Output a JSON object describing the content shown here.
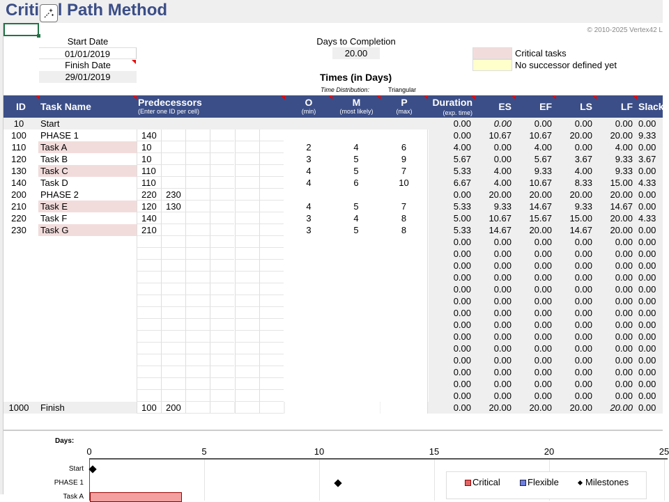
{
  "title": "Critical Path Method",
  "copyright": "© 2010-2025 Vertex42 L",
  "start_date_label": "Start Date",
  "start_date": "01/01/2019",
  "finish_date_label": "Finish Date",
  "finish_date": "29/01/2019",
  "days_to_completion_label": "Days to Completion",
  "days_to_completion": "20.00",
  "legend_top": {
    "critical": "Critical tasks",
    "no_successor": "No successor defined yet",
    "critical_color": "#f2dcdb",
    "no_successor_color": "#ffffcc"
  },
  "times_heading": "Times (in Days)",
  "time_distribution_label": "Time Distribution:",
  "time_distribution": "Triangular",
  "header": {
    "id": "ID",
    "task": "Task Name",
    "pred": "Predecessors",
    "pred_sub": "(Enter one ID per cell)",
    "o": "O",
    "o_sub": "(min)",
    "m": "M",
    "m_sub": "(most likely)",
    "p": "P",
    "p_sub": "(max)",
    "dur": "Duration",
    "dur_sub": "(exp. time)",
    "es": "ES",
    "ef": "EF",
    "ls": "LS",
    "lf": "LF",
    "slack": "Slack",
    "color": "#3b4e87"
  },
  "rows": [
    {
      "id": "10",
      "name": "Start",
      "p1": "",
      "p2": "",
      "o": "",
      "m": "",
      "p": "",
      "dur": "0.00",
      "es": "0.00",
      "ef": "0.00",
      "ls": "0.00",
      "lf": "0.00",
      "slack": "0.00",
      "critical": false,
      "band": true
    },
    {
      "id": "100",
      "name": "PHASE 1",
      "p1": "140",
      "p2": "",
      "o": "",
      "m": "",
      "p": "",
      "dur": "0.00",
      "es": "10.67",
      "ef": "10.67",
      "ls": "20.00",
      "lf": "20.00",
      "slack": "9.33",
      "critical": false
    },
    {
      "id": "110",
      "name": "Task A",
      "p1": "10",
      "p2": "",
      "o": "2",
      "m": "4",
      "p": "6",
      "dur": "4.00",
      "es": "0.00",
      "ef": "4.00",
      "ls": "0.00",
      "lf": "4.00",
      "slack": "0.00",
      "critical": true
    },
    {
      "id": "120",
      "name": "Task B",
      "p1": "10",
      "p2": "",
      "o": "3",
      "m": "5",
      "p": "9",
      "dur": "5.67",
      "es": "0.00",
      "ef": "5.67",
      "ls": "3.67",
      "lf": "9.33",
      "slack": "3.67",
      "critical": false
    },
    {
      "id": "130",
      "name": "Task C",
      "p1": "110",
      "p2": "",
      "o": "4",
      "m": "5",
      "p": "7",
      "dur": "5.33",
      "es": "4.00",
      "ef": "9.33",
      "ls": "4.00",
      "lf": "9.33",
      "slack": "0.00",
      "critical": true
    },
    {
      "id": "140",
      "name": "Task D",
      "p1": "110",
      "p2": "",
      "o": "4",
      "m": "6",
      "p": "10",
      "dur": "6.67",
      "es": "4.00",
      "ef": "10.67",
      "ls": "8.33",
      "lf": "15.00",
      "slack": "4.33",
      "critical": false
    },
    {
      "id": "200",
      "name": "PHASE 2",
      "p1": "220",
      "p2": "230",
      "o": "",
      "m": "",
      "p": "",
      "dur": "0.00",
      "es": "20.00",
      "ef": "20.00",
      "ls": "20.00",
      "lf": "20.00",
      "slack": "0.00",
      "critical": false
    },
    {
      "id": "210",
      "name": "Task E",
      "p1": "120",
      "p2": "130",
      "o": "4",
      "m": "5",
      "p": "7",
      "dur": "5.33",
      "es": "9.33",
      "ef": "14.67",
      "ls": "9.33",
      "lf": "14.67",
      "slack": "0.00",
      "critical": true
    },
    {
      "id": "220",
      "name": "Task F",
      "p1": "140",
      "p2": "",
      "o": "3",
      "m": "4",
      "p": "8",
      "dur": "5.00",
      "es": "10.67",
      "ef": "15.67",
      "ls": "15.00",
      "lf": "20.00",
      "slack": "4.33",
      "critical": false
    },
    {
      "id": "230",
      "name": "Task G",
      "p1": "210",
      "p2": "",
      "o": "3",
      "m": "5",
      "p": "8",
      "dur": "5.33",
      "es": "14.67",
      "ef": "20.00",
      "ls": "14.67",
      "lf": "20.00",
      "slack": "0.00",
      "critical": true
    }
  ],
  "empty_row_values": "0.00",
  "empty_row_count": 14,
  "finish_row": {
    "id": "1000",
    "name": "Finish",
    "p1": "100",
    "p2": "200",
    "dur": "0.00",
    "es": "20.00",
    "ef": "20.00",
    "ls": "20.00",
    "lf": "20.00",
    "slack": "0.00"
  },
  "gantt": {
    "axis_label": "Days:",
    "ticks": [
      "0",
      "5",
      "10",
      "15",
      "20",
      "25"
    ],
    "rows": [
      {
        "label": "Start",
        "type": "milestone",
        "at": 0
      },
      {
        "label": "PHASE 1",
        "type": "milestone",
        "at": 10.67
      },
      {
        "label": "Task A",
        "type": "critical",
        "start": 0,
        "end": 4
      }
    ],
    "legend": {
      "critical": "Critical",
      "flexible": "Flexible",
      "milestones": "Milestones",
      "critical_color": "#e06666",
      "flexible_color": "#6d7fe0"
    }
  }
}
